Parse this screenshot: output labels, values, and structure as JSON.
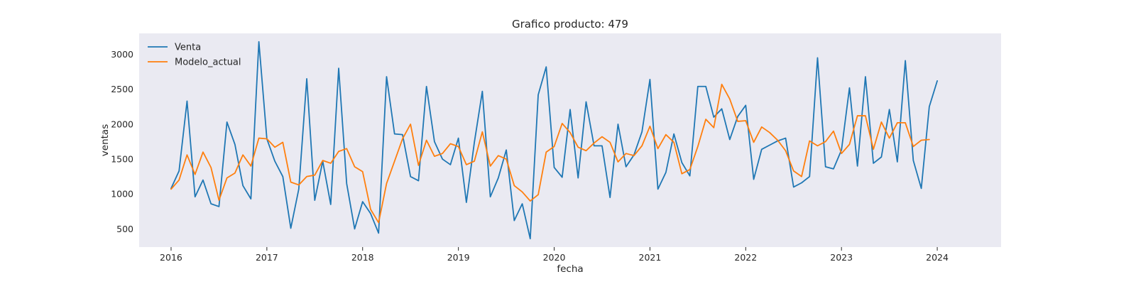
{
  "chart_data": {
    "type": "line",
    "title": "Grafico producto: 479",
    "xlabel": "fecha",
    "ylabel": "ventas",
    "x_start": "2016-01",
    "xlim": [
      "2015-09",
      "2024-09"
    ],
    "ylim": [
      240,
      3300
    ],
    "xticks": [
      "2016",
      "2017",
      "2018",
      "2019",
      "2020",
      "2021",
      "2022",
      "2023",
      "2024"
    ],
    "yticks": [
      500,
      1000,
      1500,
      2000,
      2500,
      3000
    ],
    "grid": false,
    "legend_position": "top-left",
    "background_color": "#eaeaf2",
    "series": [
      {
        "name": "Venta",
        "color": "#1f77b4",
        "values": [
          1080,
          1330,
          2330,
          960,
          1200,
          860,
          820,
          2030,
          1710,
          1120,
          930,
          3180,
          1790,
          1470,
          1250,
          510,
          1070,
          2650,
          910,
          1470,
          850,
          2800,
          1150,
          500,
          890,
          720,
          440,
          2680,
          1860,
          1850,
          1250,
          1190,
          2540,
          1750,
          1500,
          1420,
          1800,
          880,
          1740,
          2470,
          960,
          1230,
          1630,
          620,
          860,
          360,
          2420,
          2820,
          1380,
          1240,
          2210,
          1230,
          2320,
          1690,
          1690,
          950,
          2000,
          1390,
          1560,
          1890,
          2640,
          1070,
          1310,
          1860,
          1450,
          1260,
          2540,
          2540,
          2100,
          2220,
          1780,
          2110,
          2270,
          1210,
          1640,
          1700,
          1760,
          1800,
          1100,
          1160,
          1250,
          2950,
          1390,
          1360,
          1630,
          2520,
          1400,
          2680,
          1440,
          1530,
          2210,
          1460,
          2910,
          1480,
          1080,
          2250,
          2620
        ]
      },
      {
        "name": "Modelo_actual",
        "color": "#ff7f0e",
        "values": [
          1070,
          1200,
          1560,
          1280,
          1600,
          1380,
          910,
          1230,
          1300,
          1560,
          1400,
          1800,
          1790,
          1670,
          1740,
          1170,
          1130,
          1250,
          1270,
          1480,
          1440,
          1610,
          1650,
          1390,
          1320,
          780,
          590,
          1150,
          1470,
          1790,
          2000,
          1410,
          1770,
          1540,
          1580,
          1720,
          1680,
          1420,
          1470,
          1890,
          1400,
          1550,
          1500,
          1120,
          1030,
          900,
          990,
          1600,
          1680,
          2010,
          1880,
          1670,
          1620,
          1730,
          1820,
          1740,
          1460,
          1580,
          1550,
          1690,
          1970,
          1650,
          1850,
          1740,
          1290,
          1350,
          1680,
          2070,
          1950,
          2570,
          2360,
          2040,
          2050,
          1740,
          1960,
          1880,
          1770,
          1620,
          1330,
          1250,
          1760,
          1690,
          1750,
          1900,
          1580,
          1710,
          2120,
          2120,
          1640,
          2030,
          1800,
          2020,
          2020,
          1680,
          1770,
          1780
        ]
      }
    ]
  }
}
